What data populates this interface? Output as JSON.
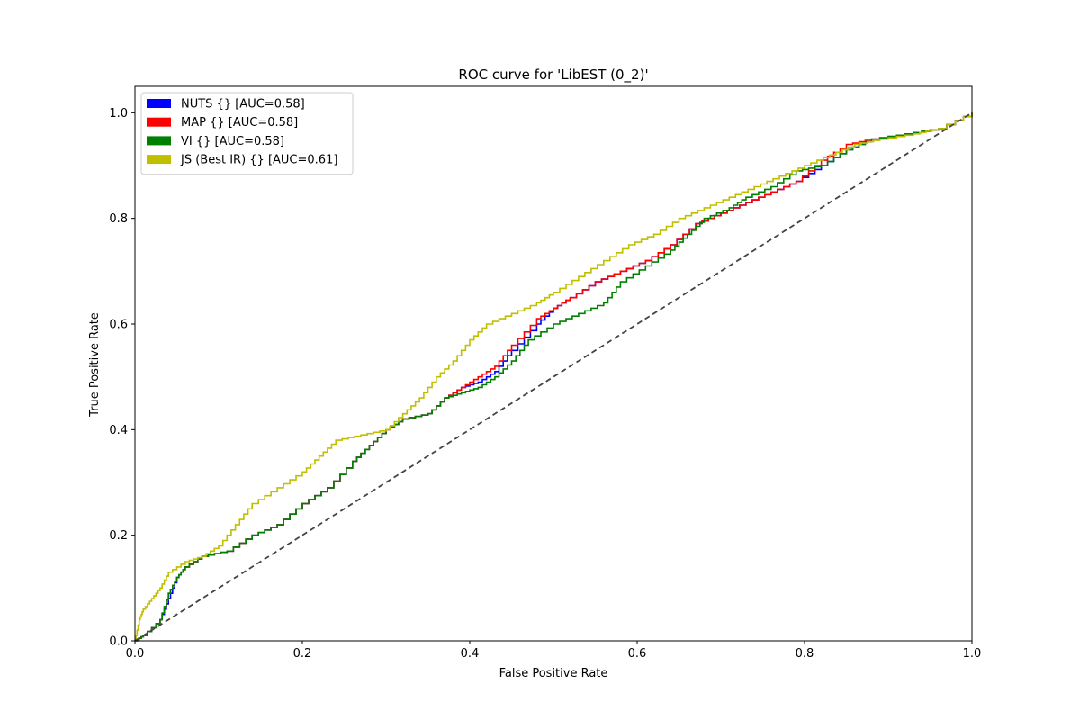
{
  "chart_data": {
    "type": "line",
    "title": "ROC curve for 'LibEST (0_2)'",
    "xlabel": "False Positive Rate",
    "ylabel": "True Positive Rate",
    "xlim": [
      0.0,
      1.0
    ],
    "ylim": [
      0.0,
      1.05
    ],
    "x_ticks": [
      "0.0",
      "0.2",
      "0.4",
      "0.6",
      "0.8",
      "1.0"
    ],
    "y_ticks": [
      "0.0",
      "0.2",
      "0.4",
      "0.6",
      "0.8",
      "1.0"
    ],
    "grid": false,
    "legend_position": "top-left",
    "series": [
      {
        "name": "NUTS {} [AUC=0.58]",
        "color": "#0000ff",
        "style": "step",
        "points": [
          [
            0,
            0
          ],
          [
            0.01,
            0.01
          ],
          [
            0.03,
            0.04
          ],
          [
            0.04,
            0.08
          ],
          [
            0.05,
            0.12
          ],
          [
            0.06,
            0.14
          ],
          [
            0.08,
            0.16
          ],
          [
            0.11,
            0.17
          ],
          [
            0.14,
            0.2
          ],
          [
            0.17,
            0.22
          ],
          [
            0.2,
            0.26
          ],
          [
            0.23,
            0.29
          ],
          [
            0.26,
            0.34
          ],
          [
            0.28,
            0.37
          ],
          [
            0.3,
            0.4
          ],
          [
            0.32,
            0.42
          ],
          [
            0.35,
            0.43
          ],
          [
            0.37,
            0.46
          ],
          [
            0.39,
            0.48
          ],
          [
            0.41,
            0.49
          ],
          [
            0.43,
            0.51
          ],
          [
            0.45,
            0.55
          ],
          [
            0.48,
            0.6
          ],
          [
            0.5,
            0.63
          ],
          [
            0.52,
            0.65
          ],
          [
            0.55,
            0.68
          ],
          [
            0.58,
            0.7
          ],
          [
            0.61,
            0.72
          ],
          [
            0.64,
            0.75
          ],
          [
            0.67,
            0.79
          ],
          [
            0.7,
            0.81
          ],
          [
            0.73,
            0.83
          ],
          [
            0.76,
            0.85
          ],
          [
            0.79,
            0.87
          ],
          [
            0.82,
            0.9
          ],
          [
            0.85,
            0.93
          ],
          [
            0.88,
            0.95
          ],
          [
            0.92,
            0.96
          ],
          [
            0.96,
            0.97
          ],
          [
            1.0,
            1.0
          ]
        ]
      },
      {
        "name": "MAP {} [AUC=0.58]",
        "color": "#ff0000",
        "style": "step",
        "points": [
          [
            0,
            0
          ],
          [
            0.01,
            0.01
          ],
          [
            0.03,
            0.04
          ],
          [
            0.04,
            0.09
          ],
          [
            0.05,
            0.12
          ],
          [
            0.06,
            0.14
          ],
          [
            0.08,
            0.16
          ],
          [
            0.11,
            0.17
          ],
          [
            0.14,
            0.2
          ],
          [
            0.17,
            0.22
          ],
          [
            0.2,
            0.26
          ],
          [
            0.23,
            0.29
          ],
          [
            0.26,
            0.34
          ],
          [
            0.28,
            0.37
          ],
          [
            0.3,
            0.4
          ],
          [
            0.32,
            0.42
          ],
          [
            0.35,
            0.43
          ],
          [
            0.37,
            0.46
          ],
          [
            0.39,
            0.48
          ],
          [
            0.41,
            0.5
          ],
          [
            0.43,
            0.52
          ],
          [
            0.45,
            0.56
          ],
          [
            0.48,
            0.61
          ],
          [
            0.5,
            0.63
          ],
          [
            0.52,
            0.65
          ],
          [
            0.55,
            0.68
          ],
          [
            0.58,
            0.7
          ],
          [
            0.61,
            0.72
          ],
          [
            0.64,
            0.75
          ],
          [
            0.67,
            0.79
          ],
          [
            0.7,
            0.81
          ],
          [
            0.73,
            0.83
          ],
          [
            0.76,
            0.85
          ],
          [
            0.79,
            0.87
          ],
          [
            0.82,
            0.91
          ],
          [
            0.85,
            0.94
          ],
          [
            0.88,
            0.95
          ],
          [
            0.92,
            0.96
          ],
          [
            0.96,
            0.97
          ],
          [
            1.0,
            1.0
          ]
        ]
      },
      {
        "name": "VI {} [AUC=0.58]",
        "color": "#008000",
        "style": "step",
        "points": [
          [
            0,
            0
          ],
          [
            0.01,
            0.01
          ],
          [
            0.03,
            0.04
          ],
          [
            0.04,
            0.09
          ],
          [
            0.05,
            0.12
          ],
          [
            0.06,
            0.14
          ],
          [
            0.08,
            0.16
          ],
          [
            0.11,
            0.17
          ],
          [
            0.14,
            0.2
          ],
          [
            0.17,
            0.22
          ],
          [
            0.2,
            0.26
          ],
          [
            0.23,
            0.29
          ],
          [
            0.26,
            0.34
          ],
          [
            0.28,
            0.37
          ],
          [
            0.3,
            0.4
          ],
          [
            0.32,
            0.42
          ],
          [
            0.35,
            0.43
          ],
          [
            0.37,
            0.46
          ],
          [
            0.39,
            0.47
          ],
          [
            0.41,
            0.48
          ],
          [
            0.43,
            0.5
          ],
          [
            0.45,
            0.53
          ],
          [
            0.47,
            0.57
          ],
          [
            0.5,
            0.6
          ],
          [
            0.53,
            0.62
          ],
          [
            0.56,
            0.64
          ],
          [
            0.58,
            0.68
          ],
          [
            0.61,
            0.71
          ],
          [
            0.64,
            0.74
          ],
          [
            0.66,
            0.77
          ],
          [
            0.68,
            0.8
          ],
          [
            0.71,
            0.82
          ],
          [
            0.73,
            0.84
          ],
          [
            0.76,
            0.86
          ],
          [
            0.79,
            0.89
          ],
          [
            0.82,
            0.9
          ],
          [
            0.85,
            0.93
          ],
          [
            0.88,
            0.95
          ],
          [
            0.92,
            0.96
          ],
          [
            0.96,
            0.97
          ],
          [
            1.0,
            1.0
          ]
        ]
      },
      {
        "name": "JS (Best IR) {} [AUC=0.61]",
        "color": "#bfbf00",
        "style": "step",
        "points": [
          [
            0,
            0
          ],
          [
            0.005,
            0.04
          ],
          [
            0.01,
            0.06
          ],
          [
            0.02,
            0.08
          ],
          [
            0.03,
            0.1
          ],
          [
            0.04,
            0.13
          ],
          [
            0.06,
            0.15
          ],
          [
            0.08,
            0.16
          ],
          [
            0.1,
            0.18
          ],
          [
            0.12,
            0.22
          ],
          [
            0.14,
            0.26
          ],
          [
            0.17,
            0.29
          ],
          [
            0.2,
            0.32
          ],
          [
            0.22,
            0.35
          ],
          [
            0.24,
            0.38
          ],
          [
            0.27,
            0.39
          ],
          [
            0.3,
            0.4
          ],
          [
            0.32,
            0.43
          ],
          [
            0.34,
            0.46
          ],
          [
            0.36,
            0.5
          ],
          [
            0.38,
            0.53
          ],
          [
            0.4,
            0.57
          ],
          [
            0.42,
            0.6
          ],
          [
            0.45,
            0.62
          ],
          [
            0.48,
            0.64
          ],
          [
            0.5,
            0.66
          ],
          [
            0.53,
            0.69
          ],
          [
            0.56,
            0.72
          ],
          [
            0.59,
            0.75
          ],
          [
            0.62,
            0.77
          ],
          [
            0.65,
            0.8
          ],
          [
            0.68,
            0.82
          ],
          [
            0.71,
            0.84
          ],
          [
            0.74,
            0.86
          ],
          [
            0.77,
            0.88
          ],
          [
            0.8,
            0.9
          ],
          [
            0.83,
            0.92
          ],
          [
            0.86,
            0.94
          ],
          [
            0.89,
            0.95
          ],
          [
            0.93,
            0.96
          ],
          [
            0.96,
            0.97
          ],
          [
            1.0,
            1.0
          ]
        ]
      },
      {
        "name": "",
        "color": "#444444",
        "style": "dashed",
        "points": [
          [
            0,
            0
          ],
          [
            1,
            1
          ]
        ]
      }
    ]
  }
}
